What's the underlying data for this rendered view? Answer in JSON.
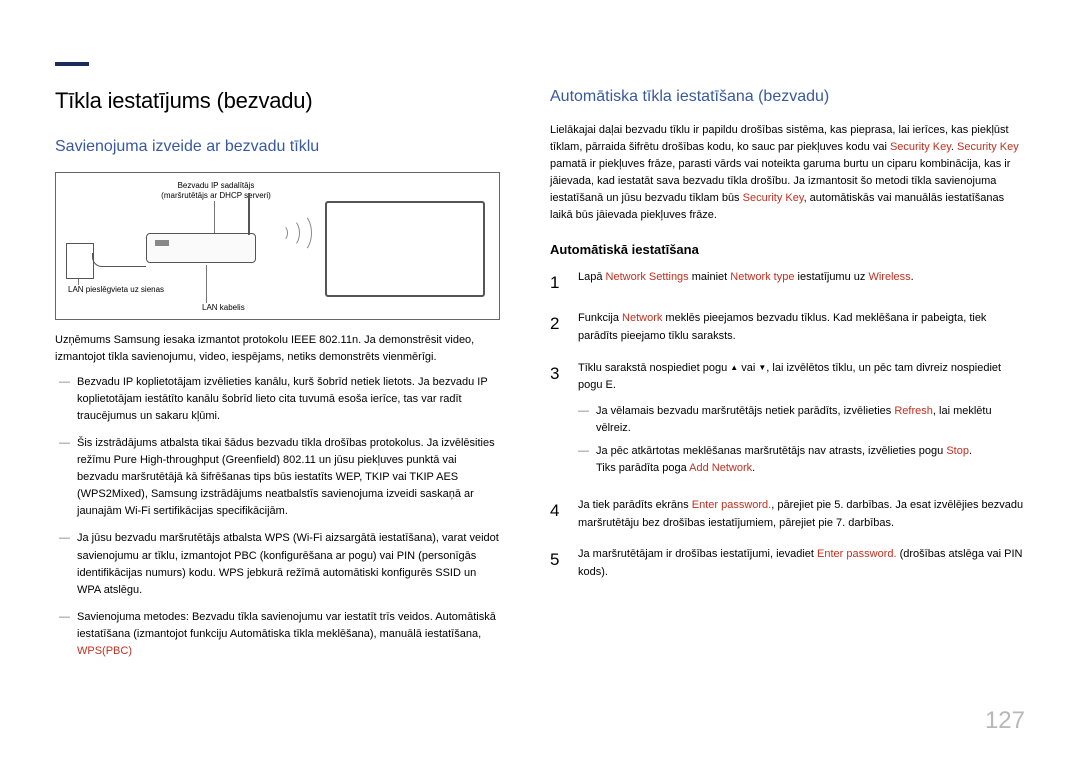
{
  "page_number": "127",
  "colors": {
    "heading_blue": "#3858a0",
    "accent_red": "#c03020",
    "text": "#000000",
    "rule": "#1a2b5c",
    "page_gray": "#b8b8b8"
  },
  "left": {
    "title": "Tīkla iestatījums (bezvadu)",
    "subtitle": "Savienojuma izveide ar bezvadu tīklu",
    "diagram": {
      "label_router_top": "Bezvadu IP sadalītājs",
      "label_router_sub": "(maršrutētājs ar DHCP serveri)",
      "label_wall": "LAN pieslēgvieta uz sienas",
      "label_cable": "LAN kabelis"
    },
    "body1": "Uzņēmums Samsung iesaka izmantot protokolu IEEE 802.11n. Ja demonstrēsit video, izmantojot tīkla savienojumu, video, iespējams, netiks demonstrēts vienmērīgi.",
    "bullets": [
      "Bezvadu IP koplietotājam izvēlieties kanālu, kurš šobrīd netiek lietots. Ja bezvadu IP koplietotājam iestātīto kanālu šobrīd lieto cita tuvumā esoša ierīce, tas var radīt traucējumus un sakaru kļūmi.",
      "Šis izstrādājums atbalsta tikai šādus bezvadu tīkla drošības protokolus.\nJa izvēlēsities režīmu Pure High-throughput (Greenfield) 802.11 un jūsu piekļuves punktā vai bezvadu maršrutētājā kā šifrēšanas tips būs iestatīts WEP, TKIP vai TKIP AES (WPS2Mixed), Samsung izstrādājums neatbalstīs savienojuma izveidi saskaņā ar jaunajām Wi-Fi sertifikācijas specifikācijām.",
      "Ja jūsu bezvadu maršrutētājs atbalsta WPS (Wi-Fi aizsargātā iestatīšana), varat veidot savienojumu ar tīklu, izmantojot PBC (konfigurēšana ar pogu) vai PIN (personīgās identifikācijas numurs) kodu. WPS jebkurā režīmā automātiski konfigurēs SSID un WPA atslēgu.",
      "Savienojuma metodes: Bezvadu tīkla savienojumu var iestatīt trīs veidos.\nAutomātiskā iestatīšana (izmantojot funkciju Automātiska tīkla meklēšana), manuālā iestatīšana, "
    ],
    "bullet4_red": "WPS(PBC)"
  },
  "right": {
    "title": "Automātiska tīkla iestatīšana (bezvadu)",
    "intro_a": "Lielākajai daļai bezvadu tīklu ir papildu drošības sistēma, kas pieprasa, lai ierīces, kas piekļūst tīklam, pārraida šifrētu drošības kodu, ko sauc par piekļuves kodu vai ",
    "intro_red1": "Security Key",
    "intro_b": ". ",
    "intro_red2": "Security Key",
    "intro_c": " pamatā ir piekļuves frāze, parasti vārds vai noteikta garuma burtu un ciparu kombinācija, kas ir jāievada, kad iestatāt sava bezvadu tīkla drošību. Ja izmantosit šo metodi tīkla savienojuma iestatīšanā un jūsu bezvadu tīklam būs ",
    "intro_red3": "Security Key",
    "intro_d": ", automātiskās vai manuālās iestatīšanas laikā būs jāievada piekļuves frāze.",
    "subhead": "Automātiskā iestatīšana",
    "steps": [
      {
        "n": "1",
        "pre": "Lapā ",
        "r1": "Network Settings",
        "mid1": " mainiet ",
        "r2": "Network type",
        "mid2": " iestatījumu uz ",
        "r3": "Wireless",
        "post": "."
      },
      {
        "n": "2",
        "pre": "Funkcija ",
        "r1": "Network",
        "post": " meklēs pieejamos bezvadu tīklus. Kad meklēšana ir pabeigta, tiek parādīts pieejamo tīklu saraksts."
      },
      {
        "n": "3",
        "text_a": "Tīklu sarakstā nospiediet pogu ",
        "text_b": " vai ",
        "text_c": ", lai izvēlētos tīklu, un pēc tam divreiz nospiediet pogu E.",
        "sub": [
          {
            "a": "Ja vēlamais bezvadu maršrutētājs netiek parādīts, izvēlieties ",
            "r": "Refresh",
            "b": ", lai meklētu vēlreiz."
          },
          {
            "a": "Ja pēc atkārtotas meklēšanas maršrutētājs nav atrasts, izvēlieties pogu ",
            "r": "Stop",
            "b": ".",
            "c": "Tiks parādīta poga ",
            "r2": "Add Network",
            "d": "."
          }
        ]
      },
      {
        "n": "4",
        "a": "Ja tiek parādīts ekrāns ",
        "r": "Enter password.",
        "b": ", pārejiet pie 5. darbības. Ja esat izvēlējies bezvadu maršrutētāju bez drošības iestatījumiem, pārejiet pie 7. darbības."
      },
      {
        "n": "5",
        "a": "Ja maršrutētājam ir drošības iestatījumi, ievadiet ",
        "r": "Enter password.",
        "b": " (drošības atslēga vai PIN kods)."
      }
    ]
  }
}
